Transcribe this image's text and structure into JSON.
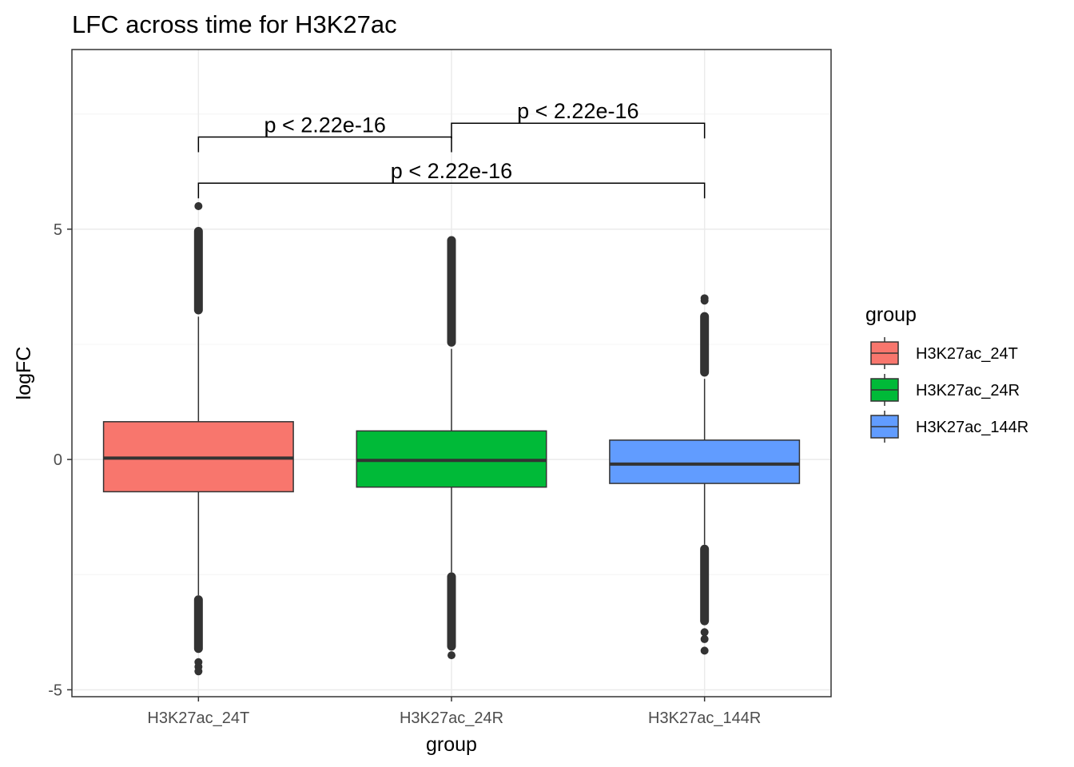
{
  "chart_data": {
    "type": "boxplot",
    "title": "LFC across time for H3K27ac",
    "xlabel": "group",
    "ylabel": "logFC",
    "ylim": [
      -5.15,
      8.9
    ],
    "y_ticks": [
      -5,
      0,
      5
    ],
    "y_tick_labels": [
      "-5",
      "0",
      "5"
    ],
    "grid": true,
    "legend": {
      "title": "group",
      "position": "right"
    },
    "categories": [
      "H3K27ac_24T",
      "H3K27ac_24R",
      "H3K27ac_144R"
    ],
    "series": [
      {
        "name": "H3K27ac_24T",
        "color": "#F8766D",
        "q1": -0.7,
        "median": 0.03,
        "q3": 0.82,
        "whisker_low": -2.95,
        "whisker_high": 3.1,
        "outliers_high": {
          "min": 3.15,
          "max": 5.05,
          "extreme": [
            5.5
          ]
        },
        "outliers_low": {
          "min": -4.2,
          "max": -2.95,
          "extreme": [
            -4.4,
            -4.5,
            -4.6
          ]
        }
      },
      {
        "name": "H3K27ac_24R",
        "color": "#00BA38",
        "q1": -0.6,
        "median": -0.02,
        "q3": 0.62,
        "whisker_low": -2.45,
        "whisker_high": 2.4,
        "outliers_high": {
          "min": 2.45,
          "max": 4.85,
          "extreme": []
        },
        "outliers_low": {
          "min": -4.15,
          "max": -2.45,
          "extreme": [
            -4.25
          ]
        }
      },
      {
        "name": "H3K27ac_144R",
        "color": "#619CFF",
        "q1": -0.52,
        "median": -0.1,
        "q3": 0.42,
        "whisker_low": -1.85,
        "whisker_high": 1.75,
        "outliers_high": {
          "min": 1.8,
          "max": 3.2,
          "extreme": [
            3.45,
            3.5
          ]
        },
        "outliers_low": {
          "min": -3.6,
          "max": -1.85,
          "extreme": [
            -3.75,
            -3.9,
            -4.15
          ]
        }
      }
    ],
    "comparisons": [
      {
        "from": 1,
        "to": 2,
        "label": "p < 2.22e-16",
        "y": 7.3
      },
      {
        "from": 0,
        "to": 1,
        "label": "p < 2.22e-16",
        "y": 7.0
      },
      {
        "from": 0,
        "to": 2,
        "label": "p < 2.22e-16",
        "y": 6.0
      }
    ]
  },
  "colors": {
    "panel_border": "#333333",
    "grid_major": "#EBEBEB",
    "grid_minor": "#F4F4F4",
    "box_line": "#333333",
    "outlier": "#333333"
  }
}
